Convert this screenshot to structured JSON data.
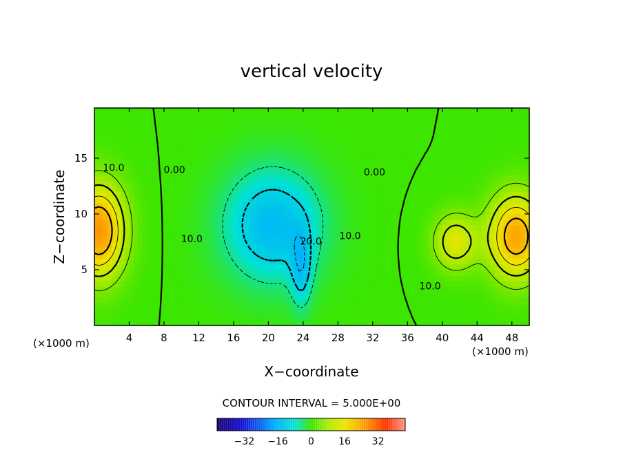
{
  "chart_data": {
    "type": "heatmap",
    "title": "vertical velocity",
    "xlabel": "X−coordinate",
    "ylabel": "Z−coordinate",
    "x_unit_labels": [
      "(×1000 m)",
      "(×1000 m)"
    ],
    "xlim": [
      0,
      50
    ],
    "ylim": [
      0,
      19.5
    ],
    "x_ticks": [
      4,
      8,
      12,
      16,
      20,
      24,
      28,
      32,
      36,
      40,
      44,
      48
    ],
    "y_ticks": [
      5,
      10,
      15
    ],
    "contour_interval_text": "CONTOUR INTERVAL = 5.000E+00",
    "contour_interval": 5.0,
    "contour_labels": [
      {
        "text": "10.0",
        "x": 2.2,
        "y": 14.1
      },
      {
        "text": "0.00",
        "x": 9.2,
        "y": 13.9
      },
      {
        "text": "10.0",
        "x": 11.2,
        "y": 7.7
      },
      {
        "text": "20.0",
        "x": 24.9,
        "y": 7.5
      },
      {
        "text": "10.0",
        "x": 29.4,
        "y": 8.0
      },
      {
        "text": "0.00",
        "x": 32.2,
        "y": 13.7
      },
      {
        "text": "10.0",
        "x": 38.6,
        "y": 3.5
      }
    ],
    "colorbar": {
      "range": [
        -45,
        45
      ],
      "tick_values": [
        -32,
        -16,
        0,
        16,
        32
      ],
      "tick_labels": [
        "−32",
        "−16",
        "0",
        "16",
        "32"
      ]
    },
    "field_features": [
      {
        "name": "left updraft",
        "x": 0.5,
        "z": 8.5,
        "sx": 3.0,
        "sz": 4.2,
        "w": 26
      },
      {
        "name": "central downdraft",
        "x": 20.5,
        "z": 9.0,
        "sx": 5.5,
        "sz": 5.0,
        "w": -15
      },
      {
        "name": "downdraft core",
        "x": 23.8,
        "z": 5.0,
        "sx": 1.2,
        "sz": 3.5,
        "w": -10
      },
      {
        "name": "right updraft",
        "x": 48.5,
        "z": 8.0,
        "sx": 3.2,
        "sz": 3.8,
        "w": 24
      },
      {
        "name": "right secondary updraft",
        "x": 41.5,
        "z": 7.5,
        "sx": 2.5,
        "sz": 2.5,
        "w": 14
      }
    ],
    "grid": false,
    "colors": {
      "low": "#1a00a0",
      "mid_low": "#00c8f0",
      "zero": "#3ce600",
      "mid_high": "#f0e600",
      "high": "#ff3200"
    }
  }
}
